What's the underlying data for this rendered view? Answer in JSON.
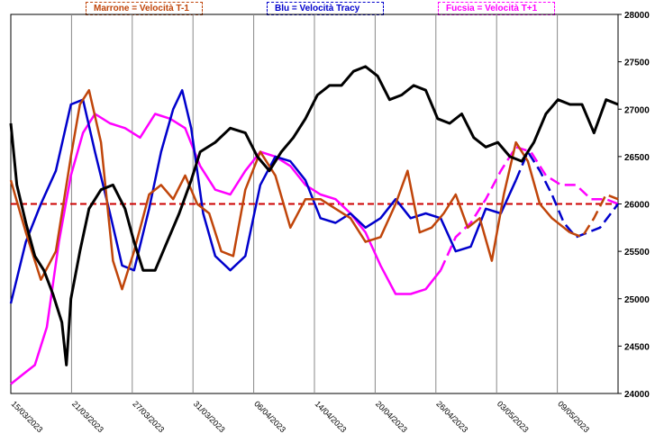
{
  "chart_data": {
    "type": "line",
    "legend": [
      {
        "label": "Marrone = Velocità T-1",
        "color": "#c0450a"
      },
      {
        "label": "Blu = Velocità Tracy",
        "color": "#0000cc"
      },
      {
        "label": "Fucsia = Velocità T+1",
        "color": "#ff00ff"
      }
    ],
    "x_ticks": [
      "15/03/2023",
      "21/03/2023",
      "27/03/2023",
      "31/03/2023",
      "06/04/2023",
      "14/04/2023",
      "20/04/2023",
      "26/04/2023",
      "03/05/2023",
      "09/05/2023"
    ],
    "y_ticks": [
      24000,
      24500,
      25000,
      25500,
      26000,
      26500,
      27000,
      27500,
      28000
    ],
    "ylim": [
      24000,
      28000
    ],
    "grid": "vertical",
    "reference_line": {
      "value": 26000,
      "color": "#cc0000",
      "style": "dashed"
    },
    "series": [
      {
        "color": "#000000",
        "style": "solid",
        "points": [
          [
            0,
            26850
          ],
          [
            0.2,
            26200
          ],
          [
            0.5,
            25800
          ],
          [
            0.8,
            25450
          ],
          [
            1.1,
            25300
          ],
          [
            1.4,
            25050
          ],
          [
            1.7,
            24750
          ],
          [
            1.85,
            24300
          ],
          [
            2.0,
            25000
          ],
          [
            2.3,
            25500
          ],
          [
            2.6,
            25950
          ],
          [
            3.0,
            26150
          ],
          [
            3.4,
            26200
          ],
          [
            3.8,
            25950
          ],
          [
            4.1,
            25600
          ],
          [
            4.4,
            25300
          ],
          [
            4.8,
            25300
          ],
          [
            5.2,
            25600
          ],
          [
            5.6,
            25900
          ],
          [
            6.0,
            26250
          ],
          [
            6.3,
            26550
          ],
          [
            6.8,
            26650
          ],
          [
            7.3,
            26800
          ],
          [
            7.8,
            26750
          ],
          [
            8.2,
            26500
          ],
          [
            8.6,
            26350
          ],
          [
            9.0,
            26550
          ],
          [
            9.4,
            26700
          ],
          [
            9.8,
            26900
          ],
          [
            10.2,
            27150
          ],
          [
            10.6,
            27250
          ],
          [
            11.0,
            27250
          ],
          [
            11.4,
            27400
          ],
          [
            11.8,
            27450
          ],
          [
            12.2,
            27350
          ],
          [
            12.6,
            27100
          ],
          [
            13.0,
            27150
          ],
          [
            13.4,
            27250
          ],
          [
            13.8,
            27200
          ],
          [
            14.2,
            26900
          ],
          [
            14.6,
            26850
          ],
          [
            15.0,
            26950
          ],
          [
            15.4,
            26700
          ],
          [
            15.8,
            26600
          ],
          [
            16.2,
            26650
          ],
          [
            16.6,
            26500
          ],
          [
            17.0,
            26450
          ],
          [
            17.4,
            26650
          ],
          [
            17.8,
            26950
          ],
          [
            18.2,
            27100
          ],
          [
            18.6,
            27050
          ],
          [
            19.0,
            27050
          ],
          [
            19.4,
            26750
          ],
          [
            19.8,
            27100
          ],
          [
            20.2,
            27050
          ]
        ]
      },
      {
        "color": "#c0450a",
        "style": "solid",
        "split": 18.6,
        "points": [
          [
            0,
            26250
          ],
          [
            0.5,
            25700
          ],
          [
            1.0,
            25200
          ],
          [
            1.5,
            25500
          ],
          [
            2.0,
            26500
          ],
          [
            2.3,
            27050
          ],
          [
            2.6,
            27200
          ],
          [
            3.0,
            26650
          ],
          [
            3.4,
            25400
          ],
          [
            3.7,
            25100
          ],
          [
            4.1,
            25500
          ],
          [
            4.6,
            26100
          ],
          [
            5.0,
            26200
          ],
          [
            5.4,
            26050
          ],
          [
            5.8,
            26300
          ],
          [
            6.2,
            26000
          ],
          [
            6.6,
            25900
          ],
          [
            7.0,
            25500
          ],
          [
            7.4,
            25450
          ],
          [
            7.8,
            26150
          ],
          [
            8.3,
            26550
          ],
          [
            8.8,
            26300
          ],
          [
            9.3,
            25750
          ],
          [
            9.8,
            26050
          ],
          [
            10.3,
            26050
          ],
          [
            10.8,
            25950
          ],
          [
            11.3,
            25850
          ],
          [
            11.8,
            25600
          ],
          [
            12.3,
            25650
          ],
          [
            12.8,
            26000
          ],
          [
            13.2,
            26350
          ],
          [
            13.6,
            25700
          ],
          [
            14.0,
            25750
          ],
          [
            14.4,
            25900
          ],
          [
            14.8,
            26100
          ],
          [
            15.2,
            25750
          ],
          [
            15.6,
            25850
          ],
          [
            16.0,
            25400
          ],
          [
            16.4,
            26100
          ],
          [
            16.8,
            26650
          ],
          [
            17.2,
            26450
          ],
          [
            17.6,
            26000
          ],
          [
            18.0,
            25850
          ],
          [
            18.4,
            25750
          ],
          [
            18.6,
            25700
          ],
          [
            19.0,
            25650
          ],
          [
            19.4,
            25850
          ],
          [
            19.8,
            26100
          ],
          [
            20.2,
            26050
          ]
        ]
      },
      {
        "color": "#0000cc",
        "style": "solid",
        "split": 16.8,
        "points": [
          [
            0,
            24950
          ],
          [
            0.5,
            25600
          ],
          [
            1.0,
            26000
          ],
          [
            1.5,
            26350
          ],
          [
            2.0,
            27050
          ],
          [
            2.4,
            27100
          ],
          [
            2.8,
            26550
          ],
          [
            3.3,
            25900
          ],
          [
            3.7,
            25350
          ],
          [
            4.1,
            25300
          ],
          [
            4.6,
            25950
          ],
          [
            5.0,
            26550
          ],
          [
            5.4,
            27000
          ],
          [
            5.7,
            27200
          ],
          [
            6.0,
            26800
          ],
          [
            6.4,
            25900
          ],
          [
            6.8,
            25450
          ],
          [
            7.3,
            25300
          ],
          [
            7.8,
            25450
          ],
          [
            8.3,
            26200
          ],
          [
            8.8,
            26500
          ],
          [
            9.3,
            26450
          ],
          [
            9.8,
            26250
          ],
          [
            10.3,
            25850
          ],
          [
            10.8,
            25800
          ],
          [
            11.3,
            25900
          ],
          [
            11.8,
            25750
          ],
          [
            12.3,
            25850
          ],
          [
            12.8,
            26050
          ],
          [
            13.3,
            25850
          ],
          [
            13.8,
            25900
          ],
          [
            14.3,
            25850
          ],
          [
            14.8,
            25500
          ],
          [
            15.3,
            25550
          ],
          [
            15.8,
            25950
          ],
          [
            16.3,
            25900
          ],
          [
            16.8,
            26250
          ],
          [
            17.2,
            26550
          ],
          [
            17.6,
            26350
          ],
          [
            18.0,
            26100
          ],
          [
            18.4,
            25800
          ],
          [
            18.8,
            25650
          ],
          [
            19.2,
            25700
          ],
          [
            19.6,
            25750
          ],
          [
            20.2,
            26000
          ]
        ]
      },
      {
        "color": "#ff00ff",
        "style": "solid",
        "split": 14.3,
        "points": [
          [
            0,
            24100
          ],
          [
            0.4,
            24200
          ],
          [
            0.8,
            24300
          ],
          [
            1.2,
            24700
          ],
          [
            1.6,
            25600
          ],
          [
            2.0,
            26300
          ],
          [
            2.4,
            26750
          ],
          [
            2.8,
            26950
          ],
          [
            3.3,
            26850
          ],
          [
            3.8,
            26800
          ],
          [
            4.3,
            26700
          ],
          [
            4.8,
            26950
          ],
          [
            5.3,
            26900
          ],
          [
            5.8,
            26800
          ],
          [
            6.3,
            26400
          ],
          [
            6.8,
            26150
          ],
          [
            7.3,
            26100
          ],
          [
            7.8,
            26350
          ],
          [
            8.3,
            26550
          ],
          [
            8.8,
            26500
          ],
          [
            9.3,
            26400
          ],
          [
            9.8,
            26200
          ],
          [
            10.3,
            26100
          ],
          [
            10.8,
            26050
          ],
          [
            11.3,
            25900
          ],
          [
            11.8,
            25700
          ],
          [
            12.3,
            25350
          ],
          [
            12.8,
            25050
          ],
          [
            13.3,
            25050
          ],
          [
            13.8,
            25100
          ],
          [
            14.3,
            25300
          ],
          [
            14.8,
            25650
          ],
          [
            15.3,
            25800
          ],
          [
            15.8,
            26050
          ],
          [
            16.3,
            26350
          ],
          [
            16.8,
            26600
          ],
          [
            17.3,
            26550
          ],
          [
            17.8,
            26300
          ],
          [
            18.3,
            26200
          ],
          [
            18.8,
            26200
          ],
          [
            19.3,
            26050
          ],
          [
            19.8,
            26050
          ],
          [
            20.2,
            26000
          ]
        ]
      }
    ]
  }
}
